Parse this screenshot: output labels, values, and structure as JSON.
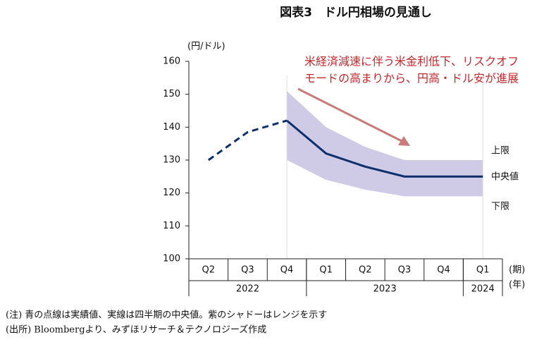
{
  "chart_data": {
    "type": "line",
    "title": "図表3　ドル円相場の見通し",
    "y_label": "(円/ドル)",
    "x_label": "(期)",
    "year_label": "(年)",
    "categories": [
      "Q2",
      "Q3",
      "Q4",
      "Q1",
      "Q2",
      "Q3",
      "Q4",
      "Q1"
    ],
    "years": [
      "2022",
      "2023",
      "2024"
    ],
    "series": [
      {
        "color": "#0d2f6b",
        "dashed": true,
        "values": [
          130,
          138.5,
          142,
          null,
          null,
          null,
          null,
          null
        ]
      },
      {
        "name": "中央値",
        "color": "#0d2f6b",
        "dashed": false,
        "values": [
          null,
          null,
          142,
          132,
          128,
          125,
          125,
          125
        ]
      }
    ],
    "range": {
      "color": "#cfcbe6",
      "label_color": "#3b2c8c",
      "upper": {
        "name": "上限",
        "values": [
          null,
          null,
          151,
          140,
          134,
          130,
          130,
          130
        ]
      },
      "lower": {
        "name": "下限",
        "values": [
          null,
          null,
          130,
          124,
          121,
          119,
          119,
          119
        ]
      }
    },
    "annotation": [
      "米経済減速に伴う米金利低下、リスクオフ",
      "モードの高まりから、円高・ドル安が進展"
    ],
    "ylim": [
      100,
      160
    ],
    "yticks": [
      100,
      110,
      120,
      130,
      140,
      150,
      160
    ],
    "notes": [
      "(注) 青の点線は実績値、実線は四半期の中央値。紫のシャドーはレンジを示す",
      "(出所) Bloombergより、みずほリサーチ＆テクノロジーズ作成"
    ]
  }
}
